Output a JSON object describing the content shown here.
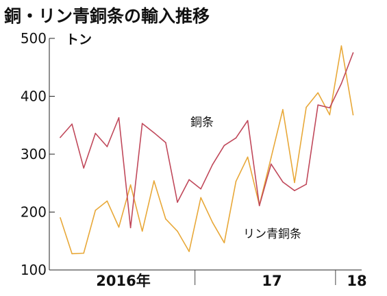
{
  "chart_data": {
    "type": "line",
    "title": "銅・リン青銅条の輸入推移",
    "ylabel": "トン",
    "ylim": [
      100,
      500
    ],
    "yticks": [
      100,
      200,
      300,
      400,
      500
    ],
    "x_group_labels": [
      "2016年",
      "17",
      "18"
    ],
    "x": [
      "2016-01",
      "2016-02",
      "2016-03",
      "2016-04",
      "2016-05",
      "2016-06",
      "2016-07",
      "2016-08",
      "2016-09",
      "2016-10",
      "2016-11",
      "2016-12",
      "2017-01",
      "2017-02",
      "2017-03",
      "2017-04",
      "2017-05",
      "2017-06",
      "2017-07",
      "2017-08",
      "2017-09",
      "2017-10",
      "2017-11",
      "2017-12",
      "2018-01",
      "2018-02"
    ],
    "grid": false,
    "series": [
      {
        "name": "銅条",
        "color": "#c0485a",
        "values": [
          329,
          352,
          276,
          336,
          313,
          363,
          173,
          353,
          337,
          320,
          217,
          256,
          240,
          282,
          315,
          328,
          358,
          211,
          283,
          252,
          237,
          248,
          385,
          380,
          422,
          475
        ]
      },
      {
        "name": "リン青銅条",
        "color": "#e8a838",
        "values": [
          190,
          128,
          129,
          203,
          219,
          174,
          247,
          167,
          254,
          188,
          167,
          132,
          225,
          182,
          147,
          253,
          295,
          212,
          294,
          377,
          251,
          381,
          406,
          368,
          487,
          368
        ]
      }
    ]
  }
}
